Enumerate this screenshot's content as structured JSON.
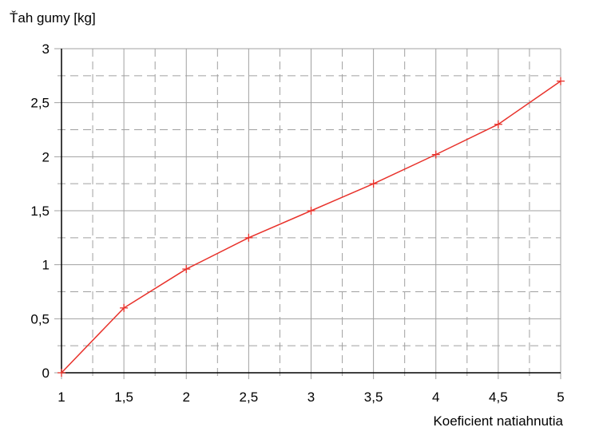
{
  "chart_data": {
    "type": "line",
    "title": "",
    "ylabel": "Ťah gumy [kg]",
    "xlabel": "Koeficient natiahnutia",
    "xlim": [
      1,
      5
    ],
    "ylim": [
      0,
      3
    ],
    "x_ticks": [
      "1",
      "1,5",
      "2",
      "2,5",
      "3",
      "3,5",
      "4",
      "4,5",
      "5"
    ],
    "y_ticks": [
      "0",
      "0,5",
      "1",
      "1,5",
      "2",
      "2,5",
      "3"
    ],
    "grid": true,
    "legend": "none",
    "series": [
      {
        "color": "#e8322b",
        "marker": "plus",
        "x": [
          1,
          1.5,
          2,
          2.5,
          3,
          3.5,
          4,
          4.5,
          5
        ],
        "y": [
          0,
          0.6,
          0.96,
          1.25,
          1.5,
          1.75,
          2.02,
          2.3,
          2.7
        ]
      }
    ],
    "colors": {
      "line": "#e8322b",
      "grid": "#a0a0a0",
      "axis": "#000000"
    }
  }
}
